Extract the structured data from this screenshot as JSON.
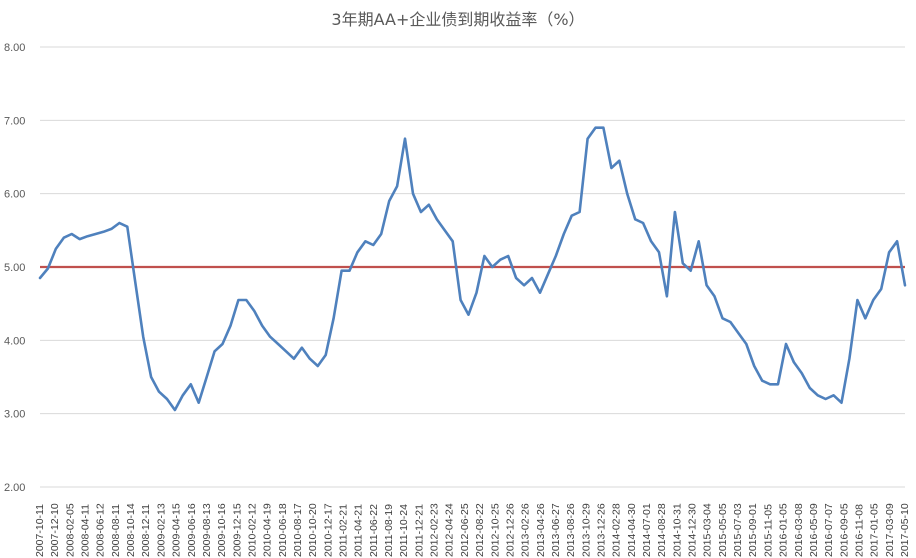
{
  "chart_data": {
    "type": "line",
    "title": "3年期AA+企业债到期收益率（%）",
    "xlabel": "",
    "ylabel": "",
    "ylim": [
      2.0,
      8.0
    ],
    "yticks": [
      "2.00",
      "3.00",
      "4.00",
      "5.00",
      "6.00",
      "7.00",
      "8.00"
    ],
    "grid": true,
    "legend": "none",
    "reference_line": {
      "y": 5.0,
      "color": "#c0504d"
    },
    "series_color": "#4f81bd",
    "x_ticks": [
      "2007-10-11",
      "2007-12-10",
      "2008-02-05",
      "2008-04-11",
      "2008-06-12",
      "2008-08-11",
      "2008-10-14",
      "2008-12-11",
      "2009-02-13",
      "2009-04-15",
      "2009-06-16",
      "2009-08-13",
      "2009-10-16",
      "2009-12-15",
      "2010-02-12",
      "2010-04-19",
      "2010-06-18",
      "2010-08-17",
      "2010-10-20",
      "2010-12-17",
      "2011-02-21",
      "2011-04-21",
      "2011-06-22",
      "2011-08-19",
      "2011-10-24",
      "2011-12-21",
      "2012-02-23",
      "2012-04-24",
      "2012-06-25",
      "2012-08-22",
      "2012-10-25",
      "2012-12-26",
      "2013-02-26",
      "2013-04-26",
      "2013-06-27",
      "2013-08-26",
      "2013-10-29",
      "2013-12-26",
      "2014-02-28",
      "2014-04-30",
      "2014-07-01",
      "2014-08-28",
      "2014-10-31",
      "2014-12-30",
      "2015-03-04",
      "2015-05-05",
      "2015-07-03",
      "2015-09-01",
      "2015-11-05",
      "2016-01-05",
      "2016-03-08",
      "2016-05-09",
      "2016-07-07",
      "2016-09-05",
      "2016-11-08",
      "2017-01-05",
      "2017-03-09",
      "2017-05-10"
    ],
    "series": [
      {
        "values": [
          4.85,
          4.98,
          5.25,
          5.4,
          5.45,
          5.38,
          5.42,
          5.45,
          5.48,
          5.52,
          5.6,
          5.55,
          4.8,
          4.05,
          3.5,
          3.3,
          3.2,
          3.05,
          3.25,
          3.4,
          3.15,
          3.5,
          3.85,
          3.95,
          4.2,
          4.55,
          4.55,
          4.4,
          4.2,
          4.05,
          3.95,
          3.85,
          3.75,
          3.9,
          3.75,
          3.65,
          3.8,
          4.3,
          4.95,
          4.95,
          5.2,
          5.35,
          5.3,
          5.45,
          5.9,
          6.1,
          6.75,
          6.0,
          5.75,
          5.85,
          5.65,
          5.5,
          5.35,
          4.55,
          4.35,
          4.65,
          5.15,
          5.0,
          5.1,
          5.15,
          4.85,
          4.75,
          4.85,
          4.65,
          4.9,
          5.15,
          5.45,
          5.7,
          5.75,
          6.75,
          6.9,
          6.9,
          6.35,
          6.45,
          6.0,
          5.65,
          5.6,
          5.35,
          5.2,
          4.6,
          5.75,
          5.05,
          4.95,
          5.35,
          4.75,
          4.6,
          4.3,
          4.25,
          4.1,
          3.95,
          3.65,
          3.45,
          3.4,
          3.4,
          3.95,
          3.7,
          3.55,
          3.35,
          3.25,
          3.2,
          3.25,
          3.15,
          3.75,
          4.55,
          4.3,
          4.55,
          4.7,
          5.2,
          5.35,
          4.75
        ]
      }
    ]
  }
}
